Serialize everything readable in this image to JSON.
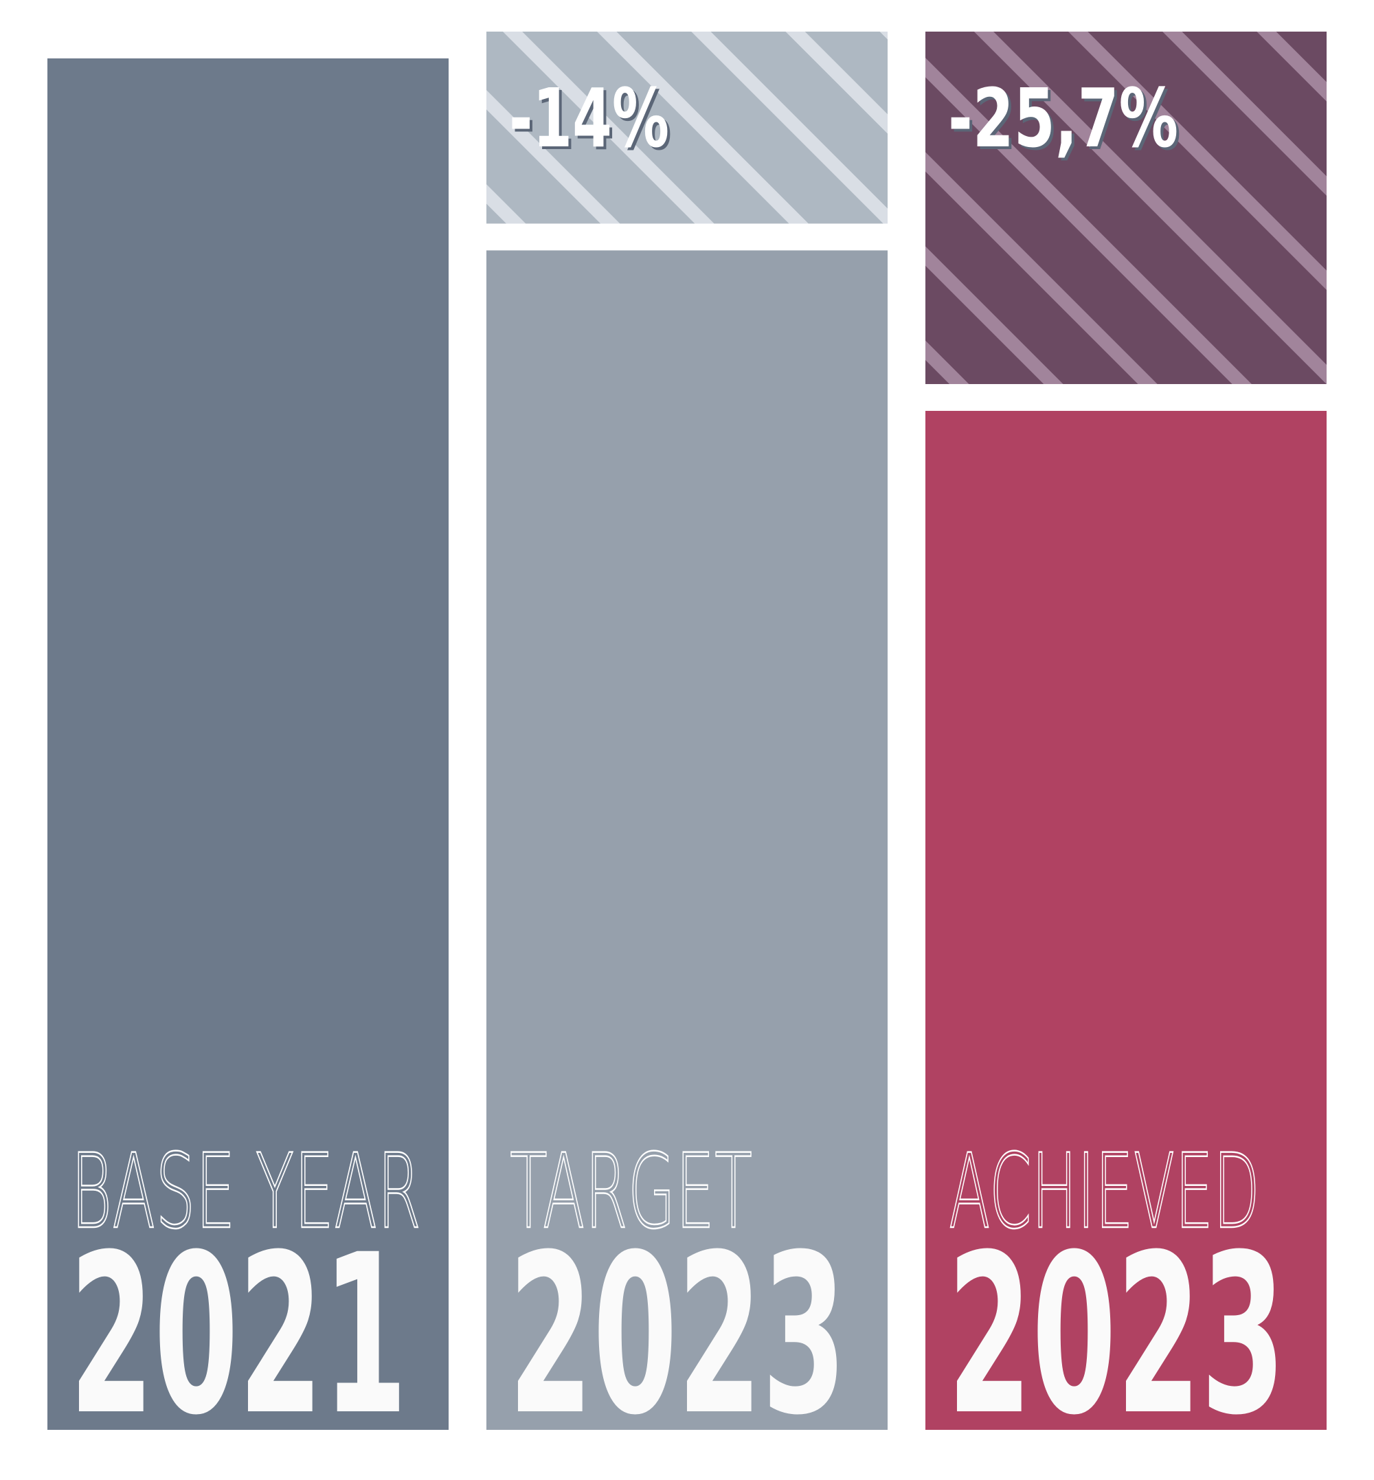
{
  "chart_data": {
    "type": "bar",
    "categories": [
      "BASE YEAR",
      "TARGET",
      "ACHIEVED"
    ],
    "years": [
      "2021",
      "2023",
      "2023"
    ],
    "values": [
      100,
      86,
      74.3
    ],
    "colors": [
      "#6d7a8b",
      "#96a0ac",
      "#b04262"
    ],
    "reductions": [
      null,
      -14,
      -25.7
    ],
    "reduction_labels": [
      null,
      "-14%",
      "-25,7%"
    ],
    "reduction_colors": [
      null,
      [
        "#aeb8c2",
        "#d9dee5"
      ],
      [
        "#6b4a62",
        "#a1849b"
      ]
    ]
  }
}
